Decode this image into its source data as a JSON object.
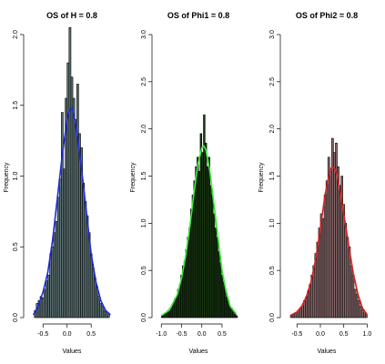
{
  "chart_data": [
    {
      "type": "histogram",
      "title": "OS of H = 0.8",
      "xlabel": "Values",
      "ylabel": "Frequency",
      "xlim": [
        -0.75,
        0.95
      ],
      "ylim": [
        0,
        2.0
      ],
      "xticks": [
        -0.5,
        0.0,
        0.5
      ],
      "xtick_labels": [
        "-0.5",
        "0.0",
        "0.5"
      ],
      "yticks": [
        0.0,
        0.5,
        1.0,
        1.5,
        2.0
      ],
      "ytick_labels": [
        "0.0",
        "0.5",
        "1.0",
        "1.5",
        "2.0"
      ],
      "bar_fill": "#5f7476",
      "curve_color": "#1f2bd8",
      "bins": {
        "x": [
          -0.66,
          -0.62,
          -0.58,
          -0.54,
          -0.5,
          -0.46,
          -0.42,
          -0.38,
          -0.34,
          -0.3,
          -0.26,
          -0.22,
          -0.18,
          -0.14,
          -0.1,
          -0.06,
          -0.02,
          0.02,
          0.06,
          0.1,
          0.14,
          0.18,
          0.22,
          0.26,
          0.3,
          0.34,
          0.38,
          0.42,
          0.46,
          0.5,
          0.54,
          0.58,
          0.62,
          0.66,
          0.7,
          0.74,
          0.78,
          0.82,
          0.86
        ],
        "values": [
          0.05,
          0.1,
          0.12,
          0.15,
          0.14,
          0.2,
          0.26,
          0.3,
          0.45,
          0.5,
          0.6,
          0.68,
          0.85,
          0.98,
          1.45,
          1.05,
          1.55,
          1.8,
          2.05,
          1.7,
          1.55,
          1.4,
          1.65,
          1.3,
          1.2,
          0.95,
          0.82,
          0.72,
          0.6,
          0.45,
          0.35,
          0.28,
          0.22,
          0.15,
          0.1,
          0.08,
          0.05,
          0.04,
          0.02
        ]
      },
      "curve": {
        "x": [
          -0.7,
          -0.6,
          -0.5,
          -0.4,
          -0.3,
          -0.2,
          -0.1,
          0.0,
          0.05,
          0.1,
          0.15,
          0.2,
          0.3,
          0.4,
          0.5,
          0.6,
          0.7,
          0.8,
          0.9
        ],
        "y": [
          0.02,
          0.08,
          0.18,
          0.32,
          0.55,
          0.85,
          1.15,
          1.4,
          1.47,
          1.48,
          1.42,
          1.32,
          1.05,
          0.75,
          0.45,
          0.25,
          0.12,
          0.05,
          0.02
        ]
      }
    },
    {
      "type": "histogram",
      "title": "OS of Phi1 = 0.8",
      "xlabel": "Values",
      "ylabel": "Frequency",
      "xlim": [
        -1.05,
        0.95
      ],
      "ylim": [
        0,
        3.0
      ],
      "xticks": [
        -1.0,
        -0.5,
        0.0,
        0.5
      ],
      "xtick_labels": [
        "-1.0",
        "-0.5",
        "0.0",
        "0.5"
      ],
      "yticks": [
        0.0,
        0.5,
        1.0,
        1.5,
        2.0,
        2.5,
        3.0
      ],
      "ytick_labels": [
        "0.0",
        "0.5",
        "1.0",
        "1.5",
        "2.0",
        "2.5",
        "3.0"
      ],
      "bar_fill": "#1a3a12",
      "curve_color": "#3ee63e",
      "bins": {
        "x": [
          -0.98,
          -0.94,
          -0.9,
          -0.86,
          -0.82,
          -0.78,
          -0.74,
          -0.7,
          -0.66,
          -0.62,
          -0.58,
          -0.54,
          -0.5,
          -0.46,
          -0.42,
          -0.38,
          -0.34,
          -0.3,
          -0.26,
          -0.22,
          -0.18,
          -0.14,
          -0.1,
          -0.06,
          -0.02,
          0.02,
          0.06,
          0.1,
          0.14,
          0.18,
          0.22,
          0.26,
          0.3,
          0.34,
          0.38,
          0.42,
          0.46,
          0.5,
          0.54,
          0.58,
          0.62,
          0.66,
          0.7,
          0.74,
          0.78,
          0.82,
          0.86
        ],
        "values": [
          0.02,
          0.03,
          0.05,
          0.05,
          0.08,
          0.1,
          0.12,
          0.15,
          0.2,
          0.22,
          0.3,
          0.35,
          0.45,
          0.55,
          0.6,
          0.72,
          0.85,
          0.95,
          1.15,
          1.3,
          1.45,
          1.6,
          1.7,
          1.55,
          1.95,
          1.75,
          2.15,
          1.85,
          1.6,
          1.7,
          1.4,
          1.3,
          1.1,
          0.95,
          0.85,
          0.7,
          0.58,
          0.45,
          0.38,
          0.3,
          0.22,
          0.18,
          0.12,
          0.1,
          0.06,
          0.04,
          0.02
        ]
      },
      "curve": {
        "x": [
          -1.0,
          -0.8,
          -0.6,
          -0.5,
          -0.4,
          -0.3,
          -0.2,
          -0.1,
          0.0,
          0.05,
          0.1,
          0.2,
          0.3,
          0.4,
          0.5,
          0.6,
          0.7,
          0.85
        ],
        "y": [
          0.02,
          0.08,
          0.25,
          0.42,
          0.65,
          0.95,
          1.3,
          1.62,
          1.8,
          1.82,
          1.78,
          1.55,
          1.2,
          0.85,
          0.5,
          0.28,
          0.12,
          0.04
        ]
      }
    },
    {
      "type": "histogram",
      "title": "OS of Phi2 = 0.8",
      "xlabel": "Values",
      "ylabel": "Frequency",
      "xlim": [
        -0.7,
        1.05
      ],
      "ylim": [
        0,
        3.0
      ],
      "xticks": [
        -0.5,
        0.0,
        0.5,
        1.0
      ],
      "xtick_labels": [
        "-0.5",
        "0.0",
        "0.5",
        "1.0"
      ],
      "yticks": [
        0.0,
        0.5,
        1.0,
        1.5,
        2.0,
        2.5,
        3.0
      ],
      "ytick_labels": [
        "0.0",
        "0.5",
        "1.0",
        "1.5",
        "2.0",
        "2.5",
        "3.0"
      ],
      "bar_fill": "#8a6a6c",
      "curve_color": "#d82020",
      "bins": {
        "x": [
          -0.62,
          -0.58,
          -0.54,
          -0.5,
          -0.46,
          -0.42,
          -0.38,
          -0.34,
          -0.3,
          -0.26,
          -0.22,
          -0.18,
          -0.14,
          -0.1,
          -0.06,
          -0.02,
          0.02,
          0.06,
          0.1,
          0.14,
          0.18,
          0.22,
          0.26,
          0.3,
          0.34,
          0.38,
          0.42,
          0.46,
          0.5,
          0.54,
          0.58,
          0.62,
          0.66,
          0.7,
          0.74,
          0.78,
          0.82,
          0.86,
          0.9,
          0.94,
          0.98
        ],
        "values": [
          0.02,
          0.03,
          0.05,
          0.06,
          0.08,
          0.1,
          0.12,
          0.18,
          0.22,
          0.28,
          0.35,
          0.45,
          0.55,
          0.68,
          0.8,
          0.95,
          1.1,
          1.05,
          1.3,
          1.45,
          1.7,
          1.55,
          1.9,
          1.75,
          1.85,
          1.6,
          1.4,
          1.5,
          1.2,
          1.0,
          0.85,
          0.75,
          0.55,
          0.45,
          0.3,
          0.25,
          0.18,
          0.12,
          0.08,
          0.05,
          0.03
        ]
      },
      "curve": {
        "x": [
          -0.65,
          -0.5,
          -0.4,
          -0.3,
          -0.2,
          -0.1,
          0.0,
          0.1,
          0.2,
          0.25,
          0.3,
          0.35,
          0.4,
          0.5,
          0.6,
          0.7,
          0.8,
          0.9,
          1.0
        ],
        "y": [
          0.02,
          0.06,
          0.12,
          0.22,
          0.38,
          0.62,
          0.95,
          1.3,
          1.55,
          1.6,
          1.58,
          1.52,
          1.4,
          1.1,
          0.78,
          0.48,
          0.25,
          0.1,
          0.03
        ]
      }
    }
  ]
}
